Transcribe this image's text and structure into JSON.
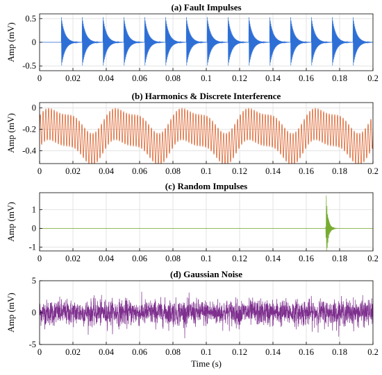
{
  "chart_data": [
    {
      "type": "line",
      "title": "(a) Fault Impulses",
      "ylabel": "Amp (mV)",
      "xlabel": "",
      "xlim": [
        0,
        0.2
      ],
      "ylim": [
        -0.6,
        0.6
      ],
      "xticks": [
        "0",
        "0.02",
        "0.04",
        "0.06",
        "0.08",
        "0.1",
        "0.12",
        "0.14",
        "0.16",
        "0.18",
        "0.2"
      ],
      "yticks": [
        {
          "value": 0.5,
          "label": "0.5"
        },
        {
          "value": 0,
          "label": "0"
        },
        {
          "value": -0.5,
          "label": "-0.5"
        }
      ],
      "grid": true,
      "color": "#2e6fd6",
      "series": [
        {
          "signal": "periodic decaying impulses",
          "impulse_times": [
            0.013,
            0.0255,
            0.038,
            0.0505,
            0.063,
            0.0755,
            0.088,
            0.1005,
            0.113,
            0.1255,
            0.138,
            0.1505,
            0.163,
            0.1755,
            0.188
          ],
          "peak": 0.55,
          "decay": 0.0022,
          "carrier_hz": 3000
        }
      ]
    },
    {
      "type": "line",
      "title": "(b) Harmonics & Discrete Interference",
      "ylabel": "Amp (mV)",
      "xlabel": "",
      "xlim": [
        0,
        0.2
      ],
      "ylim": [
        -0.52,
        0.05
      ],
      "xticks": [
        "0",
        "0.02",
        "0.04",
        "0.06",
        "0.08",
        "0.1",
        "0.12",
        "0.14",
        "0.16",
        "0.18",
        "0.2"
      ],
      "yticks": [
        {
          "value": 0,
          "label": "0"
        },
        {
          "value": -0.2,
          "label": "-0.2"
        },
        {
          "value": -0.4,
          "label": "-0.4"
        }
      ],
      "grid": true,
      "color": "#d95319",
      "series": [
        {
          "signal": "harmonic band",
          "center_offset": -0.25,
          "low_freq_hz": 25,
          "low_amp": 0.1,
          "low_freq2_hz": 50,
          "low_amp2": 0.04,
          "band_amp": 0.15,
          "band_freq_hz": 600
        }
      ]
    },
    {
      "type": "line",
      "title": "(c) Random Impulses",
      "ylabel": "Amp (mV)",
      "xlabel": "",
      "xlim": [
        0,
        0.2
      ],
      "ylim": [
        -1.2,
        1.9
      ],
      "xticks": [
        "0",
        "0.02",
        "0.04",
        "0.06",
        "0.08",
        "0.1",
        "0.12",
        "0.14",
        "0.16",
        "0.18",
        "0.2"
      ],
      "yticks": [
        {
          "value": 1,
          "label": "1"
        },
        {
          "value": 0,
          "label": "0"
        },
        {
          "value": -1,
          "label": "-1"
        }
      ],
      "grid": true,
      "color": "#77ac30",
      "series": [
        {
          "signal": "single random impulse",
          "impulse_time": 0.172,
          "peak": 1.75,
          "decay": 0.0012,
          "carrier_hz": 2500
        }
      ]
    },
    {
      "type": "line",
      "title": "(d) Gaussian Noise",
      "ylabel": "Amp (mV)",
      "xlabel": "Time (s)",
      "xlim": [
        0,
        0.2
      ],
      "ylim": [
        -5,
        5
      ],
      "xticks": [
        "0",
        "0.02",
        "0.04",
        "0.06",
        "0.08",
        "0.1",
        "0.12",
        "0.14",
        "0.16",
        "0.18",
        "0.2"
      ],
      "yticks": [
        {
          "value": 5,
          "label": "5"
        },
        {
          "value": 0,
          "label": "0"
        },
        {
          "value": -5,
          "label": "-5"
        }
      ],
      "grid": true,
      "color": "#7e2f8e",
      "series": [
        {
          "signal": "gaussian noise",
          "std": 1.0
        }
      ]
    }
  ]
}
